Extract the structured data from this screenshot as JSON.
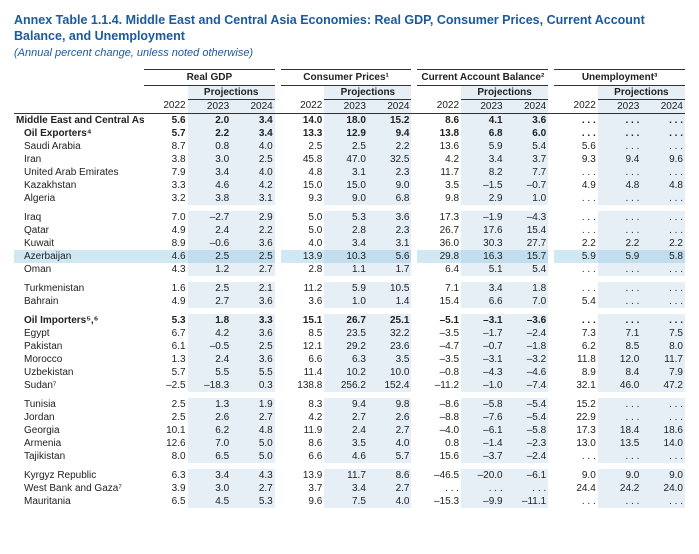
{
  "title": "Annex Table 1.1.4. Middle East and Central Asia Economies: Real GDP, Consumer Prices, Current Account Balance, and Unemployment",
  "subtitle": "(Annual percent change, unless noted otherwise)",
  "groups": [
    "Real GDP",
    "Consumer Prices¹",
    "Current Account Balance²",
    "Unemployment³"
  ],
  "sub_proj": "Projections",
  "years": [
    "2022",
    "2023",
    "2024"
  ],
  "colors": {
    "heading": "#1a5a9e",
    "proj_bg": "#e6eef6",
    "hl_bg": "#d0e8f4",
    "rule": "#333333"
  },
  "rows": [
    {
      "label": "Middle East and Central Asia",
      "bold": true,
      "v": [
        "5.6",
        "2.0",
        "3.4",
        "14.0",
        "18.0",
        "15.2",
        "8.6",
        "4.1",
        "3.6",
        ". . .",
        ". . .",
        ". . ."
      ]
    },
    {
      "label": "Oil Exporters⁴",
      "bold": true,
      "indent": true,
      "v": [
        "5.7",
        "2.2",
        "3.4",
        "13.3",
        "12.9",
        "9.4",
        "13.8",
        "6.8",
        "6.0",
        ". . .",
        ". . .",
        ". . ."
      ]
    },
    {
      "label": "Saudi Arabia",
      "indent": true,
      "v": [
        "8.7",
        "0.8",
        "4.0",
        "2.5",
        "2.5",
        "2.2",
        "13.6",
        "5.9",
        "5.4",
        "5.6",
        ". . .",
        ". . ."
      ]
    },
    {
      "label": "Iran",
      "indent": true,
      "v": [
        "3.8",
        "3.0",
        "2.5",
        "45.8",
        "47.0",
        "32.5",
        "4.2",
        "3.4",
        "3.7",
        "9.3",
        "9.4",
        "9.6"
      ]
    },
    {
      "label": "United Arab Emirates",
      "indent": true,
      "v": [
        "7.9",
        "3.4",
        "4.0",
        "4.8",
        "3.1",
        "2.3",
        "11.7",
        "8.2",
        "7.7",
        ". . .",
        ". . .",
        ". . ."
      ]
    },
    {
      "label": "Kazakhstan",
      "indent": true,
      "v": [
        "3.3",
        "4.6",
        "4.2",
        "15.0",
        "15.0",
        "9.0",
        "3.5",
        "–1.5",
        "–0.7",
        "4.9",
        "4.8",
        "4.8"
      ]
    },
    {
      "label": "Algeria",
      "indent": true,
      "v": [
        "3.2",
        "3.8",
        "3.1",
        "9.3",
        "9.0",
        "6.8",
        "9.8",
        "2.9",
        "1.0",
        ". . .",
        ". . .",
        ". . ."
      ]
    },
    {
      "spacer": true
    },
    {
      "label": "Iraq",
      "indent": true,
      "v": [
        "7.0",
        "–2.7",
        "2.9",
        "5.0",
        "5.3",
        "3.6",
        "17.3",
        "–1.9",
        "–4.3",
        ". . .",
        ". . .",
        ". . ."
      ]
    },
    {
      "label": "Qatar",
      "indent": true,
      "v": [
        "4.9",
        "2.4",
        "2.2",
        "5.0",
        "2.8",
        "2.3",
        "26.7",
        "17.6",
        "15.4",
        ". . .",
        ". . .",
        ". . ."
      ]
    },
    {
      "label": "Kuwait",
      "indent": true,
      "v": [
        "8.9",
        "–0.6",
        "3.6",
        "4.0",
        "3.4",
        "3.1",
        "36.0",
        "30.3",
        "27.7",
        "2.2",
        "2.2",
        "2.2"
      ]
    },
    {
      "label": "Azerbaijan",
      "indent": true,
      "hl": true,
      "v": [
        "4.6",
        "2.5",
        "2.5",
        "13.9",
        "10.3",
        "5.6",
        "29.8",
        "16.3",
        "15.7",
        "5.9",
        "5.9",
        "5.8"
      ]
    },
    {
      "label": "Oman",
      "indent": true,
      "v": [
        "4.3",
        "1.2",
        "2.7",
        "2.8",
        "1.1",
        "1.7",
        "6.4",
        "5.1",
        "5.4",
        ". . .",
        ". . .",
        ". . ."
      ]
    },
    {
      "spacer": true
    },
    {
      "label": "Turkmenistan",
      "indent": true,
      "v": [
        "1.6",
        "2.5",
        "2.1",
        "11.2",
        "5.9",
        "10.5",
        "7.1",
        "3.4",
        "1.8",
        ". . .",
        ". . .",
        ". . ."
      ]
    },
    {
      "label": "Bahrain",
      "indent": true,
      "v": [
        "4.9",
        "2.7",
        "3.6",
        "3.6",
        "1.0",
        "1.4",
        "15.4",
        "6.6",
        "7.0",
        "5.4",
        ". . .",
        ". . ."
      ]
    },
    {
      "spacer": true
    },
    {
      "label": "Oil Importers⁵,⁶",
      "bold": true,
      "indent": true,
      "v": [
        "5.3",
        "1.8",
        "3.3",
        "15.1",
        "26.7",
        "25.1",
        "–5.1",
        "–3.1",
        "–3.6",
        ". . .",
        ". . .",
        ". . ."
      ]
    },
    {
      "label": "Egypt",
      "indent": true,
      "v": [
        "6.7",
        "4.2",
        "3.6",
        "8.5",
        "23.5",
        "32.2",
        "–3.5",
        "–1.7",
        "–2.4",
        "7.3",
        "7.1",
        "7.5"
      ]
    },
    {
      "label": "Pakistan",
      "indent": true,
      "v": [
        "6.1",
        "–0.5",
        "2.5",
        "12.1",
        "29.2",
        "23.6",
        "–4.7",
        "–0.7",
        "–1.8",
        "6.2",
        "8.5",
        "8.0"
      ]
    },
    {
      "label": "Morocco",
      "indent": true,
      "v": [
        "1.3",
        "2.4",
        "3.6",
        "6.6",
        "6.3",
        "3.5",
        "–3.5",
        "–3.1",
        "–3.2",
        "11.8",
        "12.0",
        "11.7"
      ]
    },
    {
      "label": "Uzbekistan",
      "indent": true,
      "v": [
        "5.7",
        "5.5",
        "5.5",
        "11.4",
        "10.2",
        "10.0",
        "–0.8",
        "–4.3",
        "–4.6",
        "8.9",
        "8.4",
        "7.9"
      ]
    },
    {
      "label": "Sudan⁷",
      "indent": true,
      "v": [
        "–2.5",
        "–18.3",
        "0.3",
        "138.8",
        "256.2",
        "152.4",
        "–11.2",
        "–1.0",
        "–7.4",
        "32.1",
        "46.0",
        "47.2"
      ]
    },
    {
      "spacer": true
    },
    {
      "label": "Tunisia",
      "indent": true,
      "v": [
        "2.5",
        "1.3",
        "1.9",
        "8.3",
        "9.4",
        "9.8",
        "–8.6",
        "–5.8",
        "–5.4",
        "15.2",
        ". . .",
        ". . ."
      ]
    },
    {
      "label": "Jordan",
      "indent": true,
      "v": [
        "2.5",
        "2.6",
        "2.7",
        "4.2",
        "2.7",
        "2.6",
        "–8.8",
        "–7.6",
        "–5.4",
        "22.9",
        ". . .",
        ". . ."
      ]
    },
    {
      "label": "Georgia",
      "indent": true,
      "v": [
        "10.1",
        "6.2",
        "4.8",
        "11.9",
        "2.4",
        "2.7",
        "–4.0",
        "–6.1",
        "–5.8",
        "17.3",
        "18.4",
        "18.6"
      ]
    },
    {
      "label": "Armenia",
      "indent": true,
      "v": [
        "12.6",
        "7.0",
        "5.0",
        "8.6",
        "3.5",
        "4.0",
        "0.8",
        "–1.4",
        "–2.3",
        "13.0",
        "13.5",
        "14.0"
      ]
    },
    {
      "label": "Tajikistan",
      "indent": true,
      "v": [
        "8.0",
        "6.5",
        "5.0",
        "6.6",
        "4.6",
        "5.7",
        "15.6",
        "–3.7",
        "–2.4",
        ". . .",
        ". . .",
        ". . ."
      ]
    },
    {
      "spacer": true
    },
    {
      "label": "Kyrgyz Republic",
      "indent": true,
      "v": [
        "6.3",
        "3.4",
        "4.3",
        "13.9",
        "11.7",
        "8.6",
        "–46.5",
        "–20.0",
        "–6.1",
        "9.0",
        "9.0",
        "9.0"
      ]
    },
    {
      "label": "West Bank and Gaza⁷",
      "indent": true,
      "v": [
        "3.9",
        "3.0",
        "2.7",
        "3.7",
        "3.4",
        "2.7",
        ". . .",
        ". . .",
        ". . .",
        "24.4",
        "24.2",
        "24.0"
      ]
    },
    {
      "label": "Mauritania",
      "indent": true,
      "v": [
        "6.5",
        "4.5",
        "5.3",
        "9.6",
        "7.5",
        "4.0",
        "–15.3",
        "–9.9",
        "–11.1",
        ". . .",
        ". . .",
        ". . ."
      ]
    }
  ]
}
